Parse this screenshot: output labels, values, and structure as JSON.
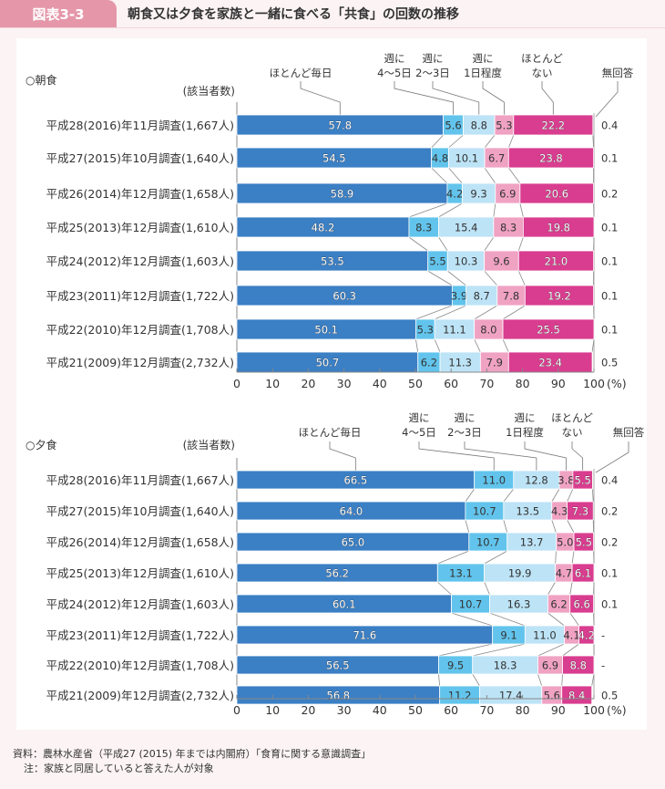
{
  "header": {
    "figure_label": "図表3-3",
    "title": "朝食又は夕食を家族と一緒に食べる「共食」の回数の推移"
  },
  "colors": {
    "series": [
      "#3b7fc4",
      "#62c4ec",
      "#bde3f6",
      "#f0a2c3",
      "#d93d8f"
    ],
    "header_tab": "#e597a9",
    "background": "#fbf3f4"
  },
  "chart_data": [
    {
      "type": "bar",
      "orientation": "horizontal",
      "stacked": true,
      "title": "○朝食",
      "row_header": "(該当者数)",
      "xlim": [
        0,
        100
      ],
      "xticks": [
        "0",
        "10",
        "20",
        "30",
        "40",
        "50",
        "60",
        "70",
        "80",
        "90",
        "100"
      ],
      "xunit": "(%)",
      "series_names": [
        "ほとんど毎日",
        "週に4～5日",
        "週に2～3日",
        "週に1日程度",
        "ほとんどない",
        "無回答"
      ],
      "legend_labels": [
        {
          "line1": "",
          "line2": "ほとんど毎日"
        },
        {
          "line1": "週に",
          "line2": "4～5日"
        },
        {
          "line1": "週に",
          "line2": "2～3日"
        },
        {
          "line1": "週に",
          "line2": "1日程度"
        },
        {
          "line1": "ほとんど",
          "line2": "ない"
        },
        {
          "line1": "",
          "line2": "無回答"
        }
      ],
      "categories": [
        "平成28(2016)年11月調査(1,667人)",
        "平成27(2015)年10月調査(1,640人)",
        "平成26(2014)年12月調査(1,658人)",
        "平成25(2013)年12月調査(1,610人)",
        "平成24(2012)年12月調査(1,603人)",
        "平成23(2011)年12月調査(1,722人)",
        "平成22(2010)年12月調査(1,708人)",
        "平成21(2009)年12月調査(2,732人)"
      ],
      "values": [
        [
          57.8,
          5.6,
          8.8,
          5.3,
          22.2,
          "0.4"
        ],
        [
          54.5,
          4.8,
          10.1,
          6.7,
          23.8,
          "0.1"
        ],
        [
          58.9,
          4.2,
          9.3,
          6.9,
          20.6,
          "0.2"
        ],
        [
          48.2,
          8.3,
          15.4,
          8.3,
          19.8,
          "0.1"
        ],
        [
          53.5,
          5.5,
          10.3,
          9.6,
          21.0,
          "0.1"
        ],
        [
          60.3,
          3.9,
          8.7,
          7.8,
          19.2,
          "0.1"
        ],
        [
          50.1,
          5.3,
          11.1,
          8.0,
          25.5,
          "0.1"
        ],
        [
          50.7,
          6.2,
          11.3,
          7.9,
          23.4,
          "0.5"
        ]
      ]
    },
    {
      "type": "bar",
      "orientation": "horizontal",
      "stacked": true,
      "title": "○夕食",
      "row_header": "(該当者数)",
      "xlim": [
        0,
        100
      ],
      "xticks": [
        "0",
        "10",
        "20",
        "30",
        "40",
        "50",
        "60",
        "70",
        "80",
        "90",
        "100"
      ],
      "xunit": "(%)",
      "series_names": [
        "ほとんど毎日",
        "週に4～5日",
        "週に2～3日",
        "週に1日程度",
        "ほとんどない",
        "無回答"
      ],
      "legend_labels": [
        {
          "line1": "",
          "line2": "ほとんど毎日"
        },
        {
          "line1": "週に",
          "line2": "4～5日"
        },
        {
          "line1": "週に",
          "line2": "2～3日"
        },
        {
          "line1": "週に",
          "line2": "1日程度"
        },
        {
          "line1": "ほとんど",
          "line2": "ない"
        },
        {
          "line1": "",
          "line2": "無回答"
        }
      ],
      "categories": [
        "平成28(2016)年11月調査(1,667人)",
        "平成27(2015)年10月調査(1,640人)",
        "平成26(2014)年12月調査(1,658人)",
        "平成25(2013)年12月調査(1,610人)",
        "平成24(2012)年12月調査(1,603人)",
        "平成23(2011)年12月調査(1,722人)",
        "平成22(2010)年12月調査(1,708人)",
        "平成21(2009)年12月調査(2,732人)"
      ],
      "values": [
        [
          66.5,
          11.0,
          12.8,
          3.8,
          5.5,
          "0.4"
        ],
        [
          64.0,
          10.7,
          13.5,
          4.3,
          7.3,
          "0.2"
        ],
        [
          65.0,
          10.7,
          13.7,
          5.0,
          5.5,
          "0.2"
        ],
        [
          56.2,
          13.1,
          19.9,
          4.7,
          6.1,
          "0.1"
        ],
        [
          60.1,
          10.7,
          16.3,
          6.2,
          6.6,
          "0.1"
        ],
        [
          71.6,
          9.1,
          11.0,
          4.1,
          4.2,
          "-"
        ],
        [
          56.5,
          9.5,
          18.3,
          6.9,
          8.8,
          "-"
        ],
        [
          56.8,
          11.2,
          17.4,
          5.6,
          8.4,
          "0.5"
        ]
      ]
    }
  ],
  "footnotes": {
    "source": "資料：農林水産省（平成27 (2015) 年までは内閣府）「食育に関する意識調査」",
    "note": "注：家族と同居していると答えた人が対象"
  }
}
